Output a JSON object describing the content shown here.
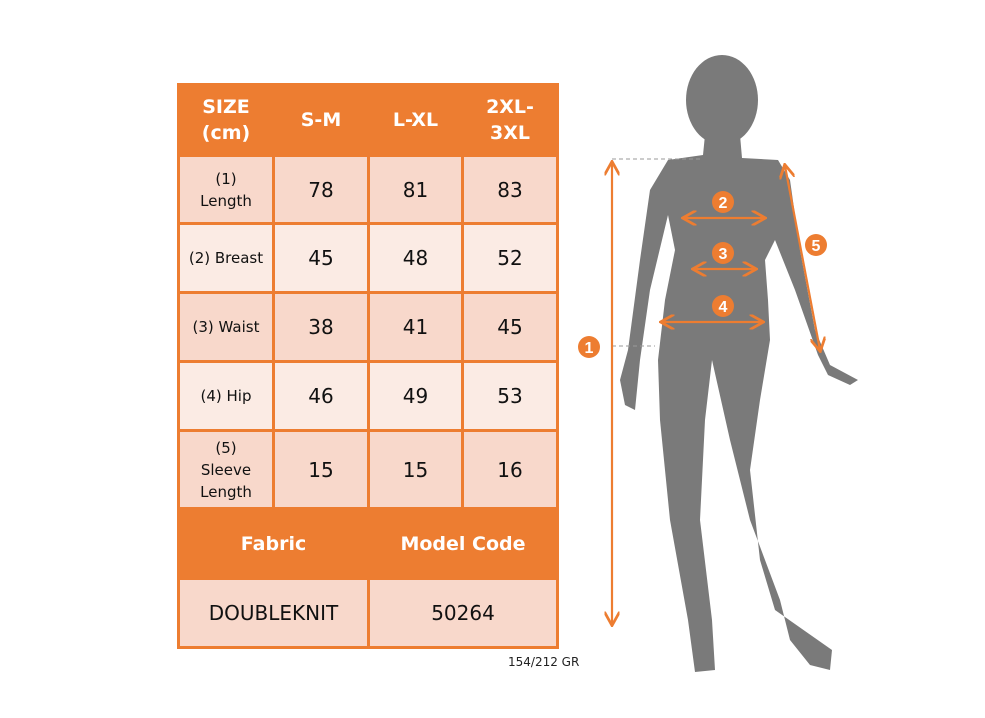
{
  "table": {
    "headers": [
      "SIZE (cm)",
      "S-M",
      "L-XL",
      "2XL-3XL"
    ],
    "rows": [
      {
        "label": "(1) Length",
        "values": [
          "78",
          "81",
          "83"
        ]
      },
      {
        "label": "(2) Breast",
        "values": [
          "45",
          "48",
          "52"
        ]
      },
      {
        "label": "(3) Waist",
        "values": [
          "38",
          "41",
          "45"
        ]
      },
      {
        "label": "(4) Hip",
        "values": [
          "46",
          "49",
          "53"
        ]
      },
      {
        "label": "(5) Sleeve Length",
        "values": [
          "15",
          "15",
          "16"
        ]
      }
    ],
    "footer_headers": [
      "Fabric",
      "Model Code"
    ],
    "footer_values": [
      "DOUBLEKNIT",
      "50264"
    ]
  },
  "weight": "154/212 GR",
  "figure": {
    "markers": [
      "1",
      "2",
      "3",
      "4",
      "5"
    ]
  },
  "colors": {
    "accent": "#ED7D31",
    "silhouette": "#7A7A7A",
    "row_dark": "#F8D8CB",
    "row_light": "#FBEBE4"
  }
}
